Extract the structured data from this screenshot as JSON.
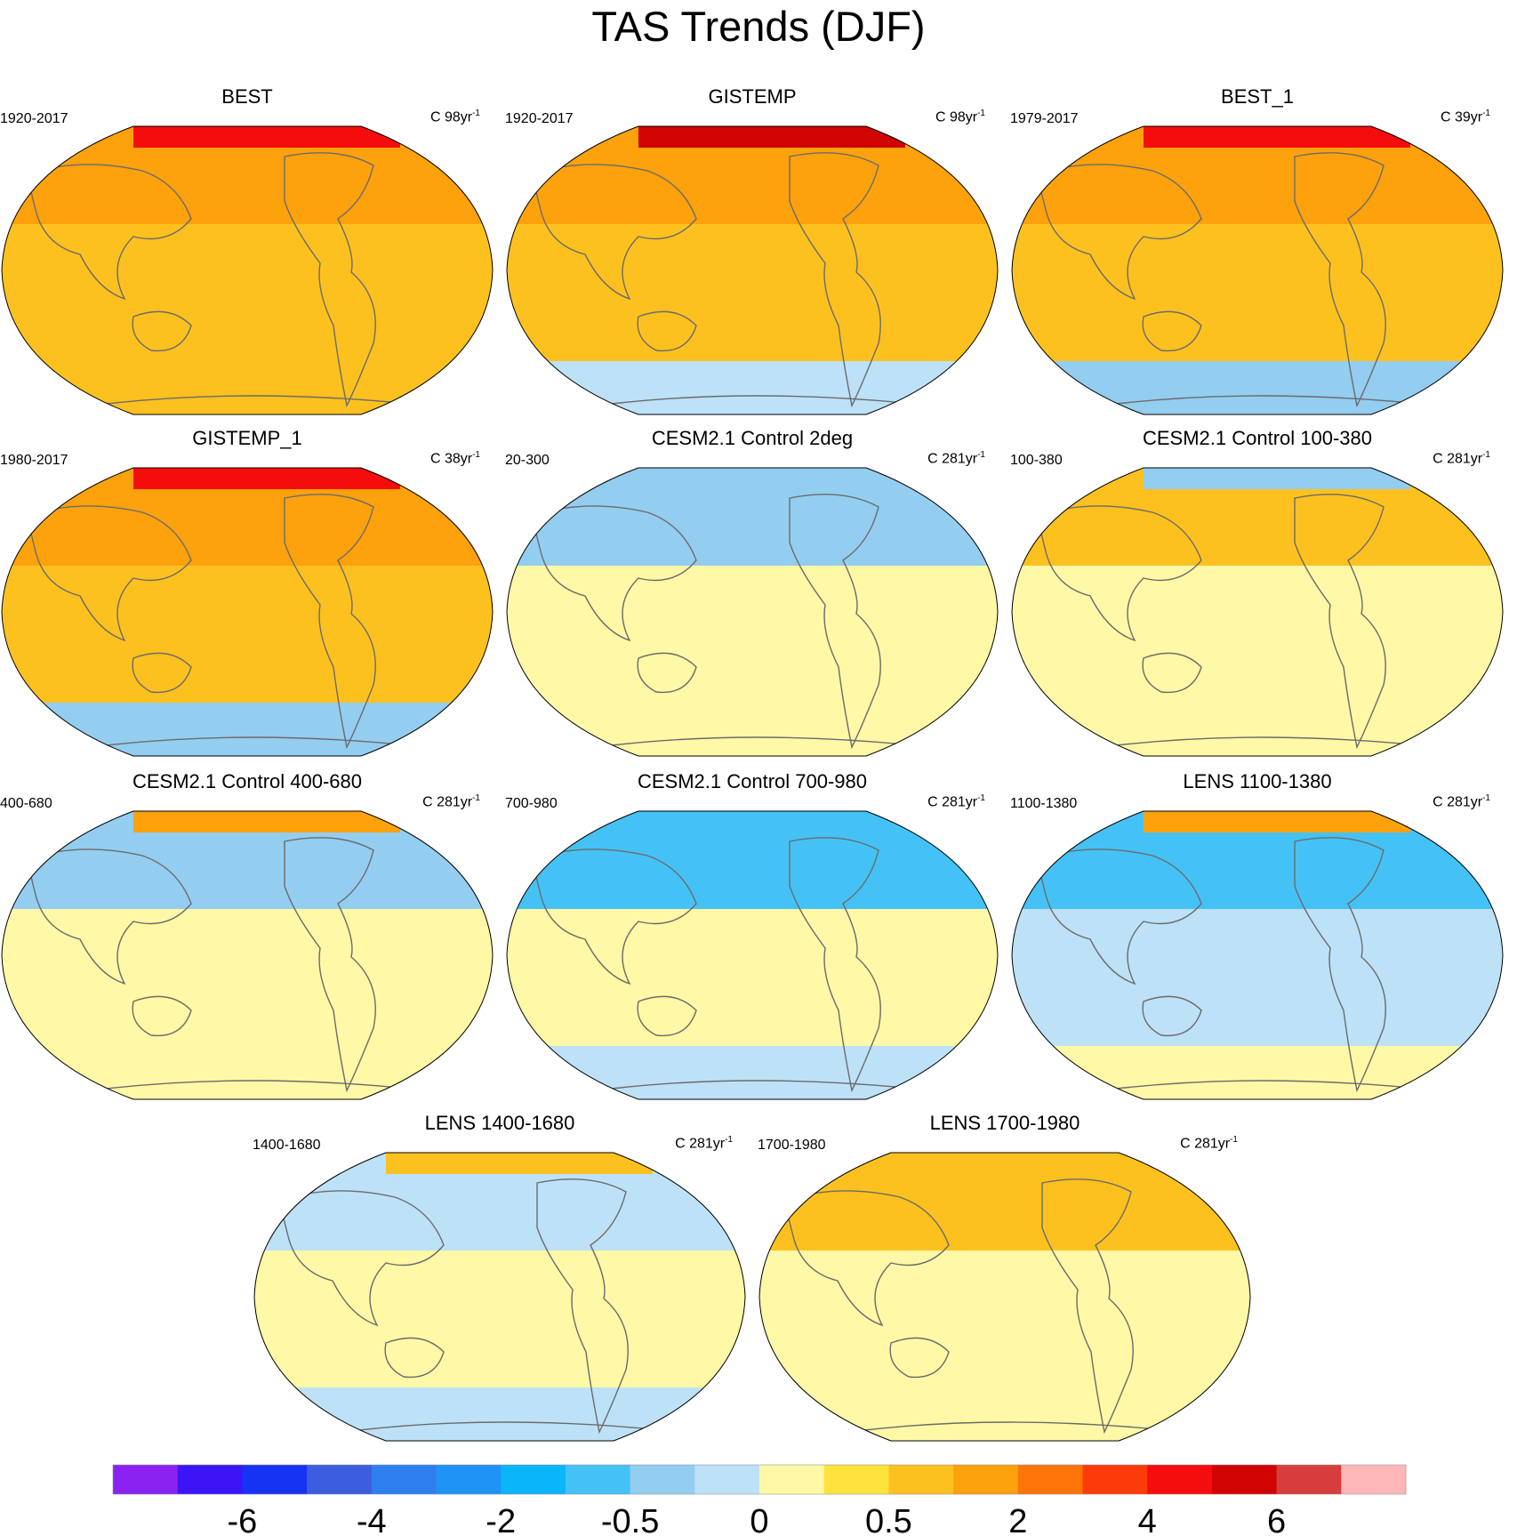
{
  "title": "TAS Trends (DJF)",
  "palette": {
    "colors": [
      "#8b22f2",
      "#3d14f5",
      "#1632f2",
      "#3c5de0",
      "#2f7ef0",
      "#1f92f5",
      "#0bb5fa",
      "#44c2f5",
      "#93cdf0",
      "#bde1f7",
      "#fff8a6",
      "#fee33c",
      "#fdc11f",
      "#fda10d",
      "#fd7408",
      "#fd3a0a",
      "#f50d0d",
      "#d10404",
      "#d73d3d",
      "#ffb6b6"
    ],
    "tick_labels": [
      "-6",
      "-4",
      "-2",
      "-0.5",
      "0",
      "0.5",
      "2",
      "4",
      "6"
    ]
  },
  "panels": [
    {
      "id": "best",
      "title": "BEST",
      "period": "1920-2017",
      "units_prefix": "C 98yr",
      "units_exp": "-1",
      "base": "#fdc11f",
      "north": "#fda10d",
      "south": "#fdc11f",
      "arctic": "#f50d0d"
    },
    {
      "id": "gistemp",
      "title": "GISTEMP",
      "period": "1920-2017",
      "units_prefix": "C 98yr",
      "units_exp": "-1",
      "base": "#fdc11f",
      "north": "#fda10d",
      "south": "#bde1f7",
      "arctic": "#d10404"
    },
    {
      "id": "best1",
      "title": "BEST_1",
      "period": "1979-2017",
      "units_prefix": "C 39yr",
      "units_exp": "-1",
      "base": "#fdc11f",
      "north": "#fda10d",
      "south": "#93cdf0",
      "arctic": "#f50d0d"
    },
    {
      "id": "gistemp1",
      "title": "GISTEMP_1",
      "period": "1980-2017",
      "units_prefix": "C 38yr",
      "units_exp": "-1",
      "base": "#fdc11f",
      "north": "#fda10d",
      "south": "#93cdf0",
      "arctic": "#f50d0d"
    },
    {
      "id": "ctl2deg",
      "title": "CESM2.1 Control 2deg",
      "period": "20-300",
      "units_prefix": "C 281yr",
      "units_exp": "-1",
      "base": "#fff8a6",
      "north": "#93cdf0",
      "south": "#fff8a6",
      "arctic": "#93cdf0"
    },
    {
      "id": "ctl100",
      "title": "CESM2.1 Control 100-380",
      "period": "100-380",
      "units_prefix": "C 281yr",
      "units_exp": "-1",
      "base": "#fff8a6",
      "north": "#fdc11f",
      "south": "#fff8a6",
      "arctic": "#93cdf0"
    },
    {
      "id": "ctl400",
      "title": "CESM2.1 Control 400-680",
      "period": "400-680",
      "units_prefix": "C 281yr",
      "units_exp": "-1",
      "base": "#fff8a6",
      "north": "#93cdf0",
      "south": "#fff8a6",
      "arctic": "#fda10d"
    },
    {
      "id": "ctl700",
      "title": "CESM2.1 Control 700-980",
      "period": "700-980",
      "units_prefix": "C 281yr",
      "units_exp": "-1",
      "base": "#fff8a6",
      "north": "#44c2f5",
      "south": "#bde1f7",
      "arctic": "#44c2f5"
    },
    {
      "id": "lens1100",
      "title": "LENS 1100-1380",
      "period": "1100-1380",
      "units_prefix": "C 281yr",
      "units_exp": "-1",
      "base": "#bde1f7",
      "north": "#44c2f5",
      "south": "#fff8a6",
      "arctic": "#fda10d"
    },
    {
      "id": "lens1400",
      "title": "LENS 1400-1680",
      "period": "1400-1680",
      "units_prefix": "C 281yr",
      "units_exp": "-1",
      "base": "#fff8a6",
      "north": "#bde1f7",
      "south": "#bde1f7",
      "arctic": "#fdc11f"
    },
    {
      "id": "lens1700",
      "title": "LENS 1700-1980",
      "period": "1700-1980",
      "units_prefix": "C 281yr",
      "units_exp": "-1",
      "base": "#fff8a6",
      "north": "#fdc11f",
      "south": "#fff8a6",
      "arctic": "#fdc11f"
    }
  ],
  "chart_data": {
    "type": "heatmap",
    "title": "TAS Trends (DJF)",
    "variable": "TAS",
    "season": "DJF",
    "levels": [
      -6,
      -4,
      -2,
      -0.5,
      0,
      0.5,
      2,
      4,
      6
    ],
    "colorbar_labels": [
      "-6",
      "-4",
      "-2",
      "-0.5",
      "0",
      "0.5",
      "2",
      "4",
      "6"
    ],
    "panels": [
      {
        "title": "BEST",
        "period": "1920-2017",
        "units": "C 98yr-1"
      },
      {
        "title": "GISTEMP",
        "period": "1920-2017",
        "units": "C 98yr-1"
      },
      {
        "title": "BEST_1",
        "period": "1979-2017",
        "units": "C 39yr-1"
      },
      {
        "title": "GISTEMP_1",
        "period": "1980-2017",
        "units": "C 38yr-1"
      },
      {
        "title": "CESM2.1 Control 2deg",
        "period": "20-300",
        "units": "C 281yr-1"
      },
      {
        "title": "CESM2.1 Control 100-380",
        "period": "100-380",
        "units": "C 281yr-1"
      },
      {
        "title": "CESM2.1 Control 400-680",
        "period": "400-680",
        "units": "C 281yr-1"
      },
      {
        "title": "CESM2.1 Control 700-980",
        "period": "700-980",
        "units": "C 281yr-1"
      },
      {
        "title": "LENS 1100-1380",
        "period": "1100-1380",
        "units": "C 281yr-1"
      },
      {
        "title": "LENS 1400-1680",
        "period": "1400-1680",
        "units": "C 281yr-1"
      },
      {
        "title": "LENS 1700-1980",
        "period": "1700-1980",
        "units": "C 281yr-1"
      }
    ]
  }
}
